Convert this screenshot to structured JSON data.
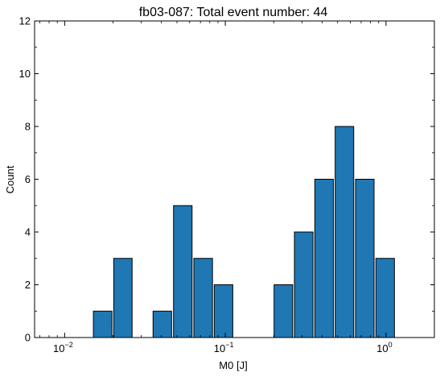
{
  "chart_data": {
    "type": "bar",
    "title": "fb03-087: Total event number: 44",
    "xlabel": "M0 [J]",
    "ylabel": "Count",
    "xscale": "log",
    "xlim": [
      0.0065,
      2.0
    ],
    "ylim": [
      0,
      12
    ],
    "yticks": [
      0,
      2,
      4,
      6,
      8,
      10,
      12
    ],
    "xticks": [
      {
        "base": "10",
        "exp": "−2",
        "value": 0.01
      },
      {
        "base": "10",
        "exp": "−1",
        "value": 0.1
      },
      {
        "base": "10",
        "exp": "0",
        "value": 1
      }
    ],
    "bar_color": "#1f77b4",
    "edge_color": "#000000",
    "bars": [
      {
        "x0": 0.0151,
        "x1": 0.0197,
        "value": 1
      },
      {
        "x0": 0.0202,
        "x1": 0.0263,
        "value": 3
      },
      {
        "x0": 0.0355,
        "x1": 0.0463,
        "value": 1
      },
      {
        "x0": 0.0476,
        "x1": 0.0621,
        "value": 5
      },
      {
        "x0": 0.0637,
        "x1": 0.0832,
        "value": 3
      },
      {
        "x0": 0.0853,
        "x1": 0.1113,
        "value": 2
      },
      {
        "x0": 0.2011,
        "x1": 0.2624,
        "value": 2
      },
      {
        "x0": 0.2692,
        "x1": 0.3513,
        "value": 4
      },
      {
        "x0": 0.3604,
        "x1": 0.4703,
        "value": 6
      },
      {
        "x0": 0.4826,
        "x1": 0.6296,
        "value": 8
      },
      {
        "x0": 0.646,
        "x1": 0.8428,
        "value": 6
      },
      {
        "x0": 0.8648,
        "x1": 1.1284,
        "value": 3
      }
    ]
  }
}
